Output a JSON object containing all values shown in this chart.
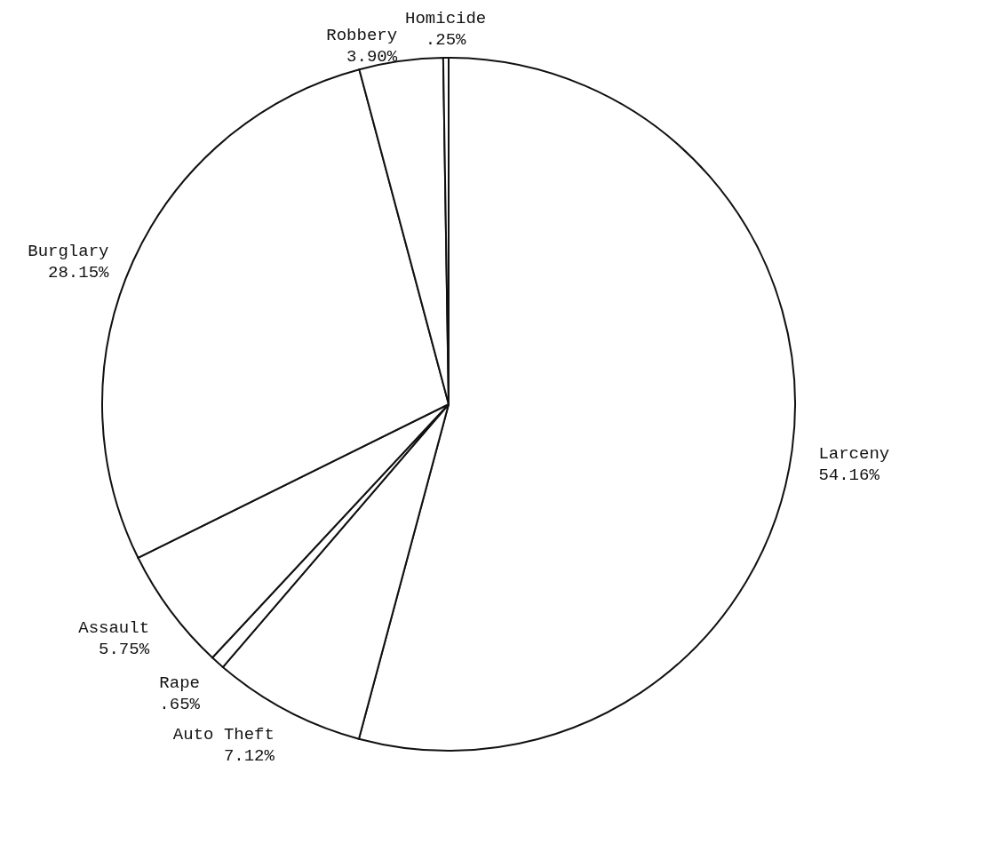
{
  "chart_data": {
    "type": "pie",
    "categories": [
      "Larceny",
      "Auto Theft",
      "Rape",
      "Assault",
      "Burglary",
      "Robbery",
      "Homicide"
    ],
    "values": [
      54.16,
      7.12,
      0.65,
      5.75,
      28.15,
      3.9,
      0.25
    ],
    "value_labels": [
      "54.16%",
      "7.12%",
      ".65%",
      "5.75%",
      "28.15%",
      "3.90%",
      ".25%"
    ],
    "colors": [
      "#ffffff",
      "#ffffff",
      "#ffffff",
      "#ffffff",
      "#ffffff",
      "#ffffff",
      "#ffffff"
    ]
  }
}
